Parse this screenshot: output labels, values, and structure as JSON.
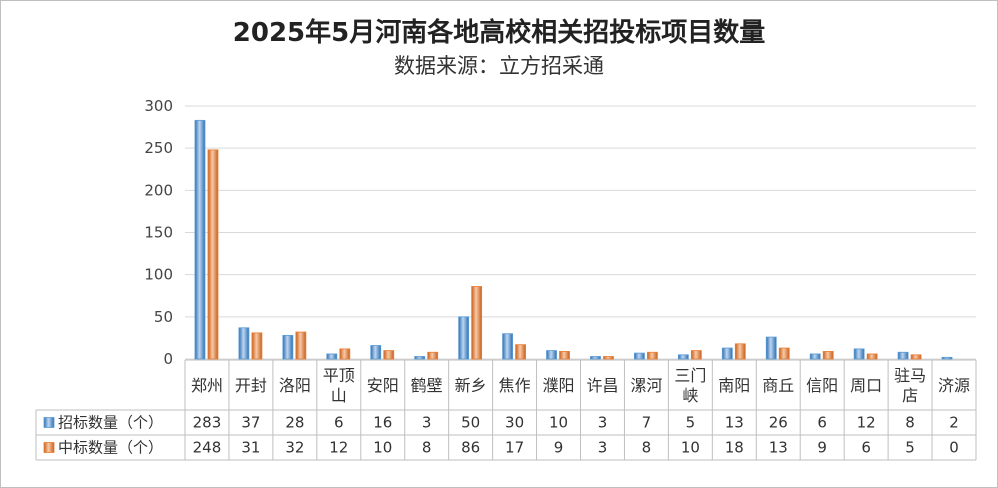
{
  "title": "2025年5月河南各地高校相关招投标项目数量",
  "subtitle": "数据来源：立方招采通",
  "chart_data": {
    "type": "bar",
    "title": "2025年5月河南各地高校相关招投标项目数量",
    "subtitle": "数据来源：立方招采通",
    "categories": [
      "郑州",
      "开封",
      "洛阳",
      "平顶山",
      "安阳",
      "鹤壁",
      "新乡",
      "焦作",
      "濮阳",
      "许昌",
      "漯河",
      "三门峡",
      "南阳",
      "商丘",
      "信阳",
      "周口",
      "驻马店",
      "济源"
    ],
    "category_label_lines": [
      [
        "郑州"
      ],
      [
        "开封"
      ],
      [
        "洛阳"
      ],
      [
        "平顶",
        "山"
      ],
      [
        "安阳"
      ],
      [
        "鹤壁"
      ],
      [
        "新乡"
      ],
      [
        "焦作"
      ],
      [
        "濮阳"
      ],
      [
        "许昌"
      ],
      [
        "漯河"
      ],
      [
        "三门",
        "峡"
      ],
      [
        "南阳"
      ],
      [
        "商丘"
      ],
      [
        "信阳"
      ],
      [
        "周口"
      ],
      [
        "驻马",
        "店"
      ],
      [
        "济源"
      ]
    ],
    "series": [
      {
        "name": "招标数量（个）",
        "color": "#5b9bd5",
        "values": [
          283,
          37,
          28,
          6,
          16,
          3,
          50,
          30,
          10,
          3,
          7,
          5,
          13,
          26,
          6,
          12,
          8,
          2
        ]
      },
      {
        "name": "中标数量（个）",
        "color": "#ed7d31",
        "values": [
          248,
          31,
          32,
          12,
          10,
          8,
          86,
          17,
          9,
          3,
          8,
          10,
          18,
          13,
          9,
          6,
          5,
          0
        ]
      }
    ],
    "ylim": [
      0,
      300
    ],
    "yticks": [
      0,
      50,
      100,
      150,
      200,
      250,
      300
    ],
    "grid": true,
    "data_table": true,
    "legend": "in data table"
  }
}
